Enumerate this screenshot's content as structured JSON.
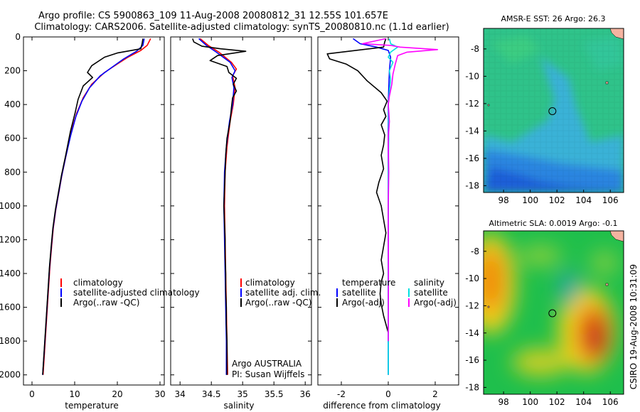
{
  "figure": {
    "title_line1": "Argo profile: CS 5900863_109 11-Aug-2008 20080812_31 12.55S 101.657E",
    "title_line2": "Climatology: CARS2006. Satellite-adjusted climatology: synTS_20080810.nc (1.1d earlier)",
    "side_label": "CSIRO 19-Aug-2008 10:31:09",
    "argo_note_line1": "Argo AUSTRALIA",
    "argo_note_line2": "PI: Susan Wijffels"
  },
  "chart_data": [
    {
      "type": "line",
      "id": "temperature",
      "xlabel": "temperature",
      "ylabel": "",
      "xlim": [
        -2,
        31
      ],
      "ylim": [
        2060,
        0
      ],
      "y_reversed": true,
      "xticks": [
        0,
        10,
        20,
        30
      ],
      "yticks": [
        0,
        200,
        400,
        600,
        800,
        1000,
        1200,
        1400,
        1600,
        1800,
        2000
      ],
      "legend": [
        "climatology",
        "satellite-adjusted climatology",
        "Argo(..raw -QC)"
      ],
      "legend_placement": "lower-right",
      "series": [
        {
          "name": "climatology",
          "color": "#ff0000",
          "points": [
            [
              27.8,
              10
            ],
            [
              27.0,
              50
            ],
            [
              25.5,
              80
            ],
            [
              22.5,
              120
            ],
            [
              20,
              160
            ],
            [
              17,
              210
            ],
            [
              14,
              280
            ],
            [
              12,
              360
            ],
            [
              10.5,
              450
            ],
            [
              9.2,
              560
            ],
            [
              8.0,
              700
            ],
            [
              7.0,
              820
            ],
            [
              6.3,
              920
            ],
            [
              5.6,
              1020
            ],
            [
              5.0,
              1130
            ],
            [
              4.6,
              1240
            ],
            [
              4.2,
              1360
            ],
            [
              3.9,
              1480
            ],
            [
              3.6,
              1600
            ],
            [
              3.3,
              1720
            ],
            [
              3.0,
              1840
            ],
            [
              2.6,
              2000
            ]
          ]
        },
        {
          "name": "satellite-adjusted climatology",
          "color": "#0000ff",
          "points": [
            [
              26.3,
              10
            ],
            [
              26.0,
              50
            ],
            [
              24.5,
              85
            ],
            [
              21.5,
              130
            ],
            [
              19,
              175
            ],
            [
              16,
              230
            ],
            [
              13.5,
              300
            ],
            [
              11.7,
              380
            ],
            [
              10.3,
              470
            ],
            [
              9.1,
              580
            ],
            [
              7.9,
              710
            ],
            [
              6.9,
              830
            ],
            [
              6.2,
              930
            ],
            [
              5.5,
              1030
            ],
            [
              4.9,
              1140
            ],
            [
              4.5,
              1250
            ],
            [
              4.1,
              1370
            ],
            [
              3.8,
              1490
            ],
            [
              3.5,
              1610
            ],
            [
              3.2,
              1730
            ],
            [
              2.9,
              1850
            ],
            [
              2.5,
              2000
            ]
          ]
        },
        {
          "name": "Argo(..raw -QC)",
          "color": "#000000",
          "points": [
            [
              26.0,
              10
            ],
            [
              25.8,
              40
            ],
            [
              25.5,
              70
            ],
            [
              20,
              95
            ],
            [
              17,
              120
            ],
            [
              14,
              170
            ],
            [
              13,
              210
            ],
            [
              14.2,
              240
            ],
            [
              12,
              290
            ],
            [
              10.8,
              370
            ],
            [
              10.1,
              450
            ],
            [
              9.0,
              560
            ],
            [
              7.9,
              700
            ],
            [
              6.9,
              820
            ],
            [
              6.2,
              920
            ],
            [
              5.5,
              1020
            ],
            [
              4.9,
              1130
            ],
            [
              4.5,
              1240
            ],
            [
              4.1,
              1360
            ],
            [
              3.8,
              1480
            ],
            [
              3.5,
              1600
            ],
            [
              3.2,
              1720
            ],
            [
              2.9,
              1840
            ],
            [
              2.5,
              2000
            ]
          ]
        }
      ]
    },
    {
      "type": "line",
      "id": "salinity",
      "xlabel": "salinity",
      "ylabel": "",
      "xlim": [
        33.85,
        36.1
      ],
      "ylim": [
        2060,
        0
      ],
      "y_reversed": true,
      "xticks": [
        34,
        34.5,
        35,
        35.5,
        36
      ],
      "yticks": [
        0,
        200,
        400,
        600,
        800,
        1000,
        1200,
        1400,
        1600,
        1800,
        2000
      ],
      "legend": [
        "climatology",
        "satellite adj. clim.",
        "Argo(..raw -QC)"
      ],
      "legend_placement": "lower-right",
      "series": [
        {
          "name": "climatology",
          "color": "#ff0000",
          "points": [
            [
              34.32,
              10
            ],
            [
              34.45,
              50
            ],
            [
              34.62,
              90
            ],
            [
              34.82,
              150
            ],
            [
              34.9,
              190
            ],
            [
              34.84,
              230
            ],
            [
              34.88,
              300
            ],
            [
              34.85,
              400
            ],
            [
              34.8,
              500
            ],
            [
              34.75,
              650
            ],
            [
              34.72,
              800
            ],
            [
              34.71,
              1000
            ],
            [
              34.72,
              1200
            ],
            [
              34.73,
              1400
            ],
            [
              34.74,
              1600
            ],
            [
              34.75,
              1800
            ],
            [
              34.76,
              2000
            ]
          ]
        },
        {
          "name": "satellite adj. clim.",
          "color": "#0000ff",
          "points": [
            [
              34.3,
              10
            ],
            [
              34.42,
              50
            ],
            [
              34.58,
              90
            ],
            [
              34.8,
              150
            ],
            [
              34.88,
              200
            ],
            [
              34.83,
              240
            ],
            [
              34.86,
              300
            ],
            [
              34.84,
              400
            ],
            [
              34.79,
              500
            ],
            [
              34.74,
              650
            ],
            [
              34.71,
              800
            ],
            [
              34.7,
              1000
            ],
            [
              34.71,
              1200
            ],
            [
              34.72,
              1400
            ],
            [
              34.73,
              1600
            ],
            [
              34.74,
              1800
            ],
            [
              34.74,
              2000
            ]
          ]
        },
        {
          "name": "Argo(..raw -QC)",
          "color": "#000000",
          "points": [
            [
              34.2,
              10
            ],
            [
              34.22,
              30
            ],
            [
              34.35,
              55
            ],
            [
              34.65,
              70
            ],
            [
              35.05,
              85
            ],
            [
              34.6,
              110
            ],
            [
              34.48,
              140
            ],
            [
              34.75,
              175
            ],
            [
              34.78,
              210
            ],
            [
              34.9,
              245
            ],
            [
              34.85,
              280
            ],
            [
              34.9,
              320
            ],
            [
              34.84,
              360
            ],
            [
              34.82,
              420
            ],
            [
              34.8,
              500
            ],
            [
              34.75,
              600
            ],
            [
              34.73,
              700
            ],
            [
              34.72,
              800
            ],
            [
              34.71,
              900
            ],
            [
              34.7,
              1000
            ],
            [
              34.71,
              1100
            ],
            [
              34.72,
              1200
            ],
            [
              34.72,
              1300
            ],
            [
              34.73,
              1400
            ],
            [
              34.73,
              1500
            ],
            [
              34.74,
              1600
            ],
            [
              34.74,
              1700
            ],
            [
              34.75,
              1800
            ],
            [
              34.75,
              1900
            ],
            [
              34.75,
              2000
            ]
          ]
        }
      ]
    },
    {
      "type": "line",
      "id": "difference",
      "xlabel": "difference from climatology",
      "ylabel": "",
      "xlim": [
        -3,
        3
      ],
      "ylim": [
        2060,
        0
      ],
      "y_reversed": true,
      "xticks": [
        -2,
        0,
        2
      ],
      "yticks": [
        0,
        200,
        400,
        600,
        800,
        1000,
        1200,
        1400,
        1600,
        1800,
        2000
      ],
      "legend": [
        "temperature",
        "satellite",
        "Argo(-adj)",
        "salinity",
        "satellite",
        "Argo(-adj)"
      ],
      "legend_placement": "lower-right",
      "series": [
        {
          "name": "temperature satellite",
          "color": "#0000ff",
          "points": [
            [
              -1.5,
              10
            ],
            [
              -1.2,
              40
            ],
            [
              -0.5,
              60
            ],
            [
              0,
              80
            ],
            [
              0.1,
              120
            ],
            [
              0.05,
              200
            ],
            [
              0.02,
              300
            ],
            [
              0,
              400
            ],
            [
              0,
              600
            ],
            [
              0,
              1000
            ],
            [
              0,
              1500
            ],
            [
              0,
              2000
            ]
          ]
        },
        {
          "name": "temperature Argo(-adj)",
          "color": "#000000",
          "points": [
            [
              -0.1,
              10
            ],
            [
              -0.15,
              30
            ],
            [
              -0.2,
              60
            ],
            [
              -2.6,
              100
            ],
            [
              -2.5,
              130
            ],
            [
              -1.8,
              160
            ],
            [
              -1.3,
              200
            ],
            [
              -0.9,
              260
            ],
            [
              -0.3,
              330
            ],
            [
              -0.05,
              380
            ],
            [
              -0.2,
              430
            ],
            [
              -0.1,
              470
            ],
            [
              -0.3,
              520
            ],
            [
              -0.15,
              580
            ],
            [
              -0.2,
              640
            ],
            [
              -0.3,
              700
            ],
            [
              -0.2,
              780
            ],
            [
              -0.4,
              860
            ],
            [
              -0.5,
              920
            ],
            [
              -0.3,
              1000
            ],
            [
              -0.2,
              1080
            ],
            [
              -0.1,
              1160
            ],
            [
              -0.2,
              1240
            ],
            [
              -0.3,
              1320
            ],
            [
              -0.2,
              1400
            ],
            [
              -0.3,
              1450
            ],
            [
              -0.35,
              1520
            ],
            [
              -0.3,
              1580
            ],
            [
              -0.2,
              1650
            ],
            [
              -0.1,
              1700
            ],
            [
              0,
              1750
            ]
          ]
        },
        {
          "name": "salinity satellite",
          "color": "#00e0e0",
          "points": [
            [
              0.05,
              10
            ],
            [
              0.1,
              40
            ],
            [
              0.4,
              60
            ],
            [
              0.1,
              90
            ],
            [
              0.0,
              120
            ],
            [
              0.2,
              150
            ],
            [
              0.05,
              200
            ],
            [
              0.1,
              250
            ],
            [
              0.05,
              320
            ],
            [
              0.0,
              400
            ],
            [
              0.02,
              600
            ],
            [
              0.0,
              800
            ],
            [
              0.01,
              1200
            ],
            [
              0,
              1600
            ],
            [
              0,
              2000
            ]
          ]
        },
        {
          "name": "salinity Argo(-adj)",
          "color": "#ff00ff",
          "points": [
            [
              -0.1,
              10
            ],
            [
              -1.1,
              40
            ],
            [
              0.1,
              50
            ],
            [
              0.5,
              60
            ],
            [
              2.1,
              75
            ],
            [
              0.8,
              90
            ],
            [
              0.4,
              110
            ],
            [
              0.3,
              160
            ],
            [
              0.2,
              220
            ],
            [
              0.15,
              280
            ],
            [
              0.05,
              350
            ],
            [
              0.0,
              400
            ],
            [
              0.05,
              500
            ],
            [
              0.0,
              600
            ],
            [
              0.02,
              800
            ],
            [
              0.0,
              1000
            ],
            [
              0.01,
              1400
            ],
            [
              0,
              1800
            ]
          ]
        }
      ]
    },
    {
      "type": "heatmap",
      "id": "sst_map",
      "title": "AMSR-E SST: 26 Argo: 26.3",
      "xlim": [
        96.5,
        107
      ],
      "ylim": [
        -18.5,
        -6.5
      ],
      "xticks": [
        98,
        100,
        102,
        104,
        106
      ],
      "yticks": [
        -8,
        -10,
        -12,
        -14,
        -16,
        -18
      ],
      "profile_location": [
        101.657,
        -12.55
      ],
      "colors": {
        "warm": "#2fc38a",
        "mid": "#3bb0e0",
        "cool": "#1b5fd8",
        "land": "#f5b3a0"
      }
    },
    {
      "type": "heatmap",
      "id": "sla_map",
      "title": "Altimetric SLA: 0.0019 Argo: -0.1",
      "xlim": [
        96.5,
        107
      ],
      "ylim": [
        -18.5,
        -6.5
      ],
      "xticks": [
        98,
        100,
        102,
        104,
        106
      ],
      "yticks": [
        -8,
        -10,
        -12,
        -14,
        -16,
        -18
      ],
      "profile_location": [
        101.657,
        -12.55
      ],
      "colors": {
        "high": "#c0201a",
        "warm": "#f08a10",
        "mid": "#f4d21c",
        "low": "#1fbf4c",
        "lowest": "#1fa6a6",
        "land": "#f5b3a0"
      }
    }
  ]
}
